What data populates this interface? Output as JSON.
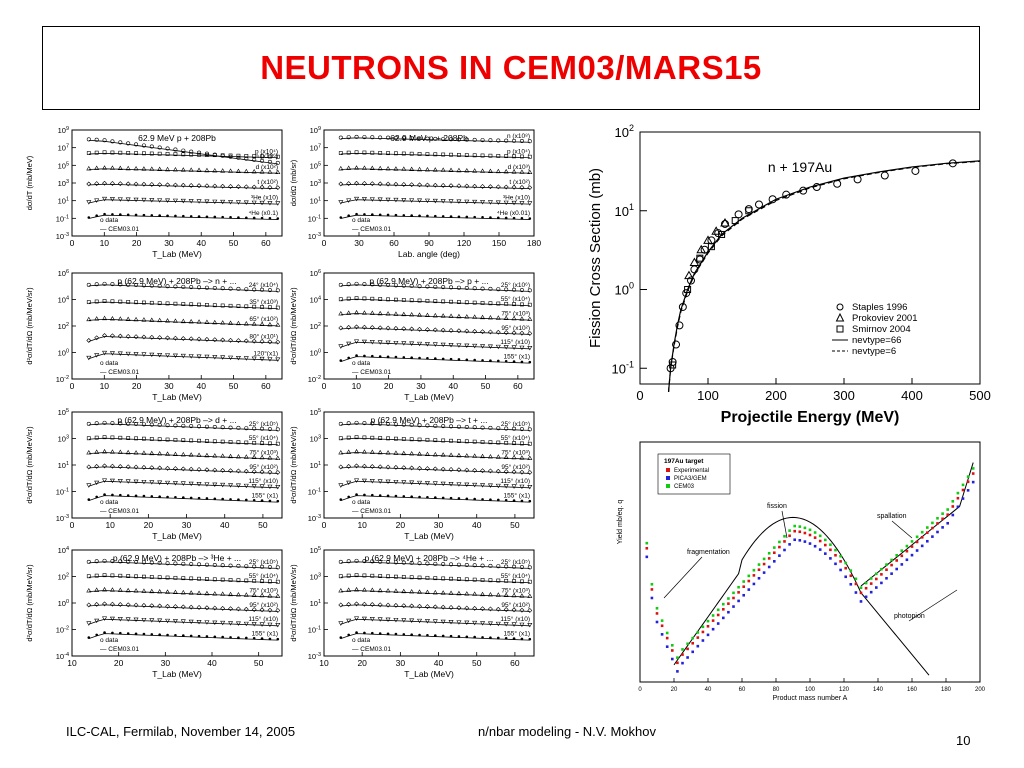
{
  "slide": {
    "title": "NEUTRONS IN CEM03/MARS15",
    "footer_left": "ILC-CAL, Fermilab, November 14, 2005",
    "footer_mid": "n/nbar modeling -  N.V. Mokhov",
    "page_number": "10"
  },
  "chart_data": [
    {
      "type": "scatter",
      "panel": "neutron-energy",
      "title": "62.9 MeV p + 208Pb",
      "xlabel": "T_Lab (MeV)",
      "ylabel": "dσ/dT (mb/MeV)",
      "xlim": [
        0,
        65
      ],
      "ylim_log": [
        -3,
        9
      ],
      "xticks": [
        "0",
        "10",
        "20",
        "30",
        "40",
        "50",
        "60"
      ],
      "yticks": [
        "10-3",
        "10-1",
        "101",
        "103",
        "105",
        "107",
        "109"
      ],
      "legend": [
        "o data",
        "— CEM03.01"
      ],
      "series_labels": [
        "n (x10⁶)",
        "p (x10⁴)",
        "d (x10²)",
        "t (x10²)",
        "³He (x10)",
        "⁴He (x0.1)"
      ]
    },
    {
      "type": "scatter",
      "panel": "angular",
      "title": "62.9 MeV p + 208Pb",
      "xlabel": "Lab. angle (deg)",
      "ylabel": "dσ/dΩ (mb/sr)",
      "xlim": [
        0,
        180
      ],
      "ylim_log": [
        -3,
        9
      ],
      "xticks": [
        "0",
        "30",
        "60",
        "90",
        "120",
        "150",
        "180"
      ],
      "yticks": [
        "10-3",
        "10-1",
        "101",
        "103",
        "105",
        "107",
        "109"
      ],
      "legend": [
        "o data",
        "— CEM03.01"
      ],
      "series_labels": [
        "n (x10⁸)",
        "p (x10⁴)",
        "d (x10³)",
        "t (x10²)",
        "³He (x10)",
        "⁴He (x0.01)"
      ]
    },
    {
      "type": "scatter",
      "panel": "pn",
      "title": "p (62.9 MeV) + 208Pb –> n + ...",
      "xlabel": "T_Lab (MeV)",
      "ylabel": "d²σ/dT/dΩ (mb/MeV/sr)",
      "xlim": [
        0,
        65
      ],
      "ylim_log": [
        -2,
        6
      ],
      "xticks": [
        "0",
        "10",
        "20",
        "30",
        "40",
        "50",
        "60"
      ],
      "yticks": [
        "10-2",
        "100",
        "102",
        "104",
        "106"
      ],
      "legend": [
        "o data",
        "— CEM03.01"
      ],
      "series_labels": [
        "24° (x10⁴)",
        "35° (x10³)",
        "65° (x10²)",
        "80° (x10¹)",
        "120°(x1)"
      ]
    },
    {
      "type": "scatter",
      "panel": "pp",
      "title": "p (62.9 MeV) + 208Pb –> p + ...",
      "xlabel": "T_Lab (MeV)",
      "ylabel": "d²σ/dT/dΩ (mb/MeV/sr)",
      "xlim": [
        0,
        65
      ],
      "ylim_log": [
        -2,
        6
      ],
      "xticks": [
        "0",
        "10",
        "20",
        "30",
        "40",
        "50",
        "60"
      ],
      "yticks": [
        "10-2",
        "100",
        "102",
        "104",
        "106"
      ],
      "legend": [
        "o data",
        "— CEM03.01"
      ],
      "series_labels": [
        "25° (x10⁶)",
        "55° (x10⁴)",
        "75° (x10³)",
        "95° (x10²)",
        "115° (x10)",
        "155° (x1)"
      ]
    },
    {
      "type": "scatter",
      "panel": "pd",
      "title": "p (62.9 MeV) + 208Pb –> d + ...",
      "xlabel": "T_Lab (MeV)",
      "ylabel": "d²σ/dT/dΩ (mb/MeV/sr)",
      "xlim": [
        0,
        55
      ],
      "ylim_log": [
        -3,
        5
      ],
      "xticks": [
        "0",
        "10",
        "20",
        "30",
        "40",
        "50"
      ],
      "yticks": [
        "10-3",
        "10-1",
        "101",
        "103",
        "105"
      ],
      "legend": [
        "o data",
        "— CEM03.01"
      ],
      "series_labels": [
        "25° (x10⁵)",
        "55° (x10⁴)",
        "75° (x10³)",
        "95° (x10²)",
        "115° (x10)",
        "155° (x1)"
      ]
    },
    {
      "type": "scatter",
      "panel": "pt",
      "title": "p (62.9 MeV) + 208Pb –> t + ...",
      "xlabel": "T_Lab (MeV)",
      "ylabel": "d²σ/dT/dΩ (mb/MeV/sr)",
      "xlim": [
        0,
        55
      ],
      "ylim_log": [
        -3,
        5
      ],
      "xticks": [
        "0",
        "10",
        "20",
        "30",
        "40",
        "50"
      ],
      "yticks": [
        "10-3",
        "10-1",
        "101",
        "103",
        "105"
      ],
      "legend": [
        "o data",
        "— CEM03.01"
      ],
      "series_labels": [
        "25° (x10⁵)",
        "55° (x10⁴)",
        "75° (x10³)",
        "95° (x10²)",
        "115° (x10)",
        "155° (x1)"
      ]
    },
    {
      "type": "scatter",
      "panel": "p3he",
      "title": "p (62.9 MeV) + 208Pb –> ³He + ...",
      "xlabel": "T_Lab (MeV)",
      "ylabel": "d²σ/dT/dΩ (mb/MeV/sr)",
      "xlim": [
        10,
        55
      ],
      "ylim_log": [
        -4,
        4
      ],
      "xticks": [
        "10",
        "20",
        "30",
        "40",
        "50"
      ],
      "yticks": [
        "10-4",
        "10-2",
        "100",
        "102",
        "104"
      ],
      "legend": [
        "o data",
        "— CEM03.01"
      ],
      "series_labels": [
        "25° (x10⁵)",
        "55° (x10⁴)",
        "75° (x10³)",
        "95° (x10²)",
        "115° (x10)",
        "155° (x1)"
      ]
    },
    {
      "type": "scatter",
      "panel": "p4he",
      "title": "p (62.9 MeV) + 208Pb –> ⁴He + ...",
      "xlabel": "T_Lab (MeV)",
      "ylabel": "d²σ/dT/dΩ (mb/MeV/sr)",
      "xlim": [
        10,
        65
      ],
      "ylim_log": [
        -3,
        5
      ],
      "xticks": [
        "10",
        "20",
        "30",
        "40",
        "50",
        "60"
      ],
      "yticks": [
        "10-3",
        "10-1",
        "101",
        "103",
        "105"
      ],
      "legend": [
        "o data",
        "— CEM03.01"
      ],
      "series_labels": [
        "25° (x10⁵)",
        "55° (x10⁴)",
        "75° (x10³)",
        "95° (x10²)",
        "115° (x10)",
        "155° (x1)"
      ]
    },
    {
      "type": "line",
      "panel": "fission",
      "title": "n + 197Au",
      "xlabel": "Projectile Energy  (MeV)",
      "ylabel": "Fission Cross Section  (mb)",
      "xlim": [
        0,
        500
      ],
      "ylim_log": [
        -1.2,
        2
      ],
      "xticks": [
        "0",
        "100",
        "200",
        "300",
        "400",
        "500"
      ],
      "yticks": [
        "10-1",
        "100",
        "101",
        "102"
      ],
      "legend": [
        "Staples 1996",
        "Prokoviev 2001",
        "Smirnov 2004",
        "nevtype=66",
        "nevtype=6"
      ],
      "series": [
        {
          "name": "Staples 1996",
          "marker": "circle",
          "x": [
            45,
            48,
            53,
            58,
            63,
            68,
            75,
            80,
            88,
            95,
            105,
            115,
            125,
            145,
            160,
            175,
            195,
            215,
            240,
            260,
            290,
            320,
            360,
            405,
            460
          ],
          "y": [
            0.1,
            0.12,
            0.2,
            0.35,
            0.6,
            0.9,
            1.3,
            1.8,
            2.4,
            3.2,
            4.2,
            5.2,
            6.8,
            9,
            10.5,
            12,
            14,
            16,
            18,
            20,
            22,
            25,
            28,
            32,
            40
          ]
        },
        {
          "name": "Prokoviev 2001",
          "marker": "triangle",
          "x": [
            72,
            80,
            90,
            100,
            112,
            125
          ],
          "y": [
            1.5,
            2.2,
            3.2,
            4.2,
            5.5,
            7
          ]
        },
        {
          "name": "Smirnov 2004",
          "marker": "square",
          "x": [
            48,
            70,
            88,
            105,
            120,
            140,
            160
          ],
          "y": [
            0.11,
            1.0,
            2.5,
            3.5,
            5.0,
            7.5,
            10
          ]
        },
        {
          "name": "nevtype=66",
          "style": "solid",
          "x": [
            42,
            45,
            50,
            55,
            60,
            70,
            80,
            100,
            120,
            150,
            200,
            250,
            300,
            350,
            400,
            450,
            500
          ],
          "y": [
            0.05,
            0.1,
            0.2,
            0.35,
            0.55,
            1.0,
            1.6,
            3.0,
            5.0,
            8.0,
            14,
            20,
            26,
            31,
            36,
            40,
            43
          ]
        },
        {
          "name": "nevtype=6",
          "style": "dashed",
          "x": [
            42,
            45,
            50,
            55,
            60,
            70,
            80,
            100,
            120,
            150,
            200,
            250,
            300,
            350,
            400,
            450,
            500
          ],
          "y": [
            0.05,
            0.1,
            0.19,
            0.33,
            0.52,
            0.95,
            1.55,
            2.9,
            4.8,
            7.8,
            13.5,
            19.5,
            25.5,
            30.5,
            35.5,
            39.5,
            42.5
          ]
        }
      ]
    },
    {
      "type": "scatter",
      "panel": "yield",
      "title": "197Au target",
      "xlabel": "Product mass number  A",
      "ylabel": "Yield   mb/eq. q",
      "xlim": [
        0,
        200
      ],
      "ylim_log": [
        -4,
        3
      ],
      "xticks": [
        "0",
        "20",
        "40",
        "60",
        "80",
        "100",
        "120",
        "140",
        "160",
        "180",
        "200"
      ],
      "legend": [
        "Experimental",
        "PICA3/GEM",
        "CEM03"
      ],
      "annotations": [
        "fission",
        "spallation",
        "fragmentation",
        "photopion"
      ],
      "series": [
        {
          "name": "Experimental",
          "color": "#dd1111"
        },
        {
          "name": "PICA3/GEM",
          "color": "#2222dd"
        },
        {
          "name": "CEM03",
          "color": "#11cc11"
        }
      ]
    }
  ]
}
